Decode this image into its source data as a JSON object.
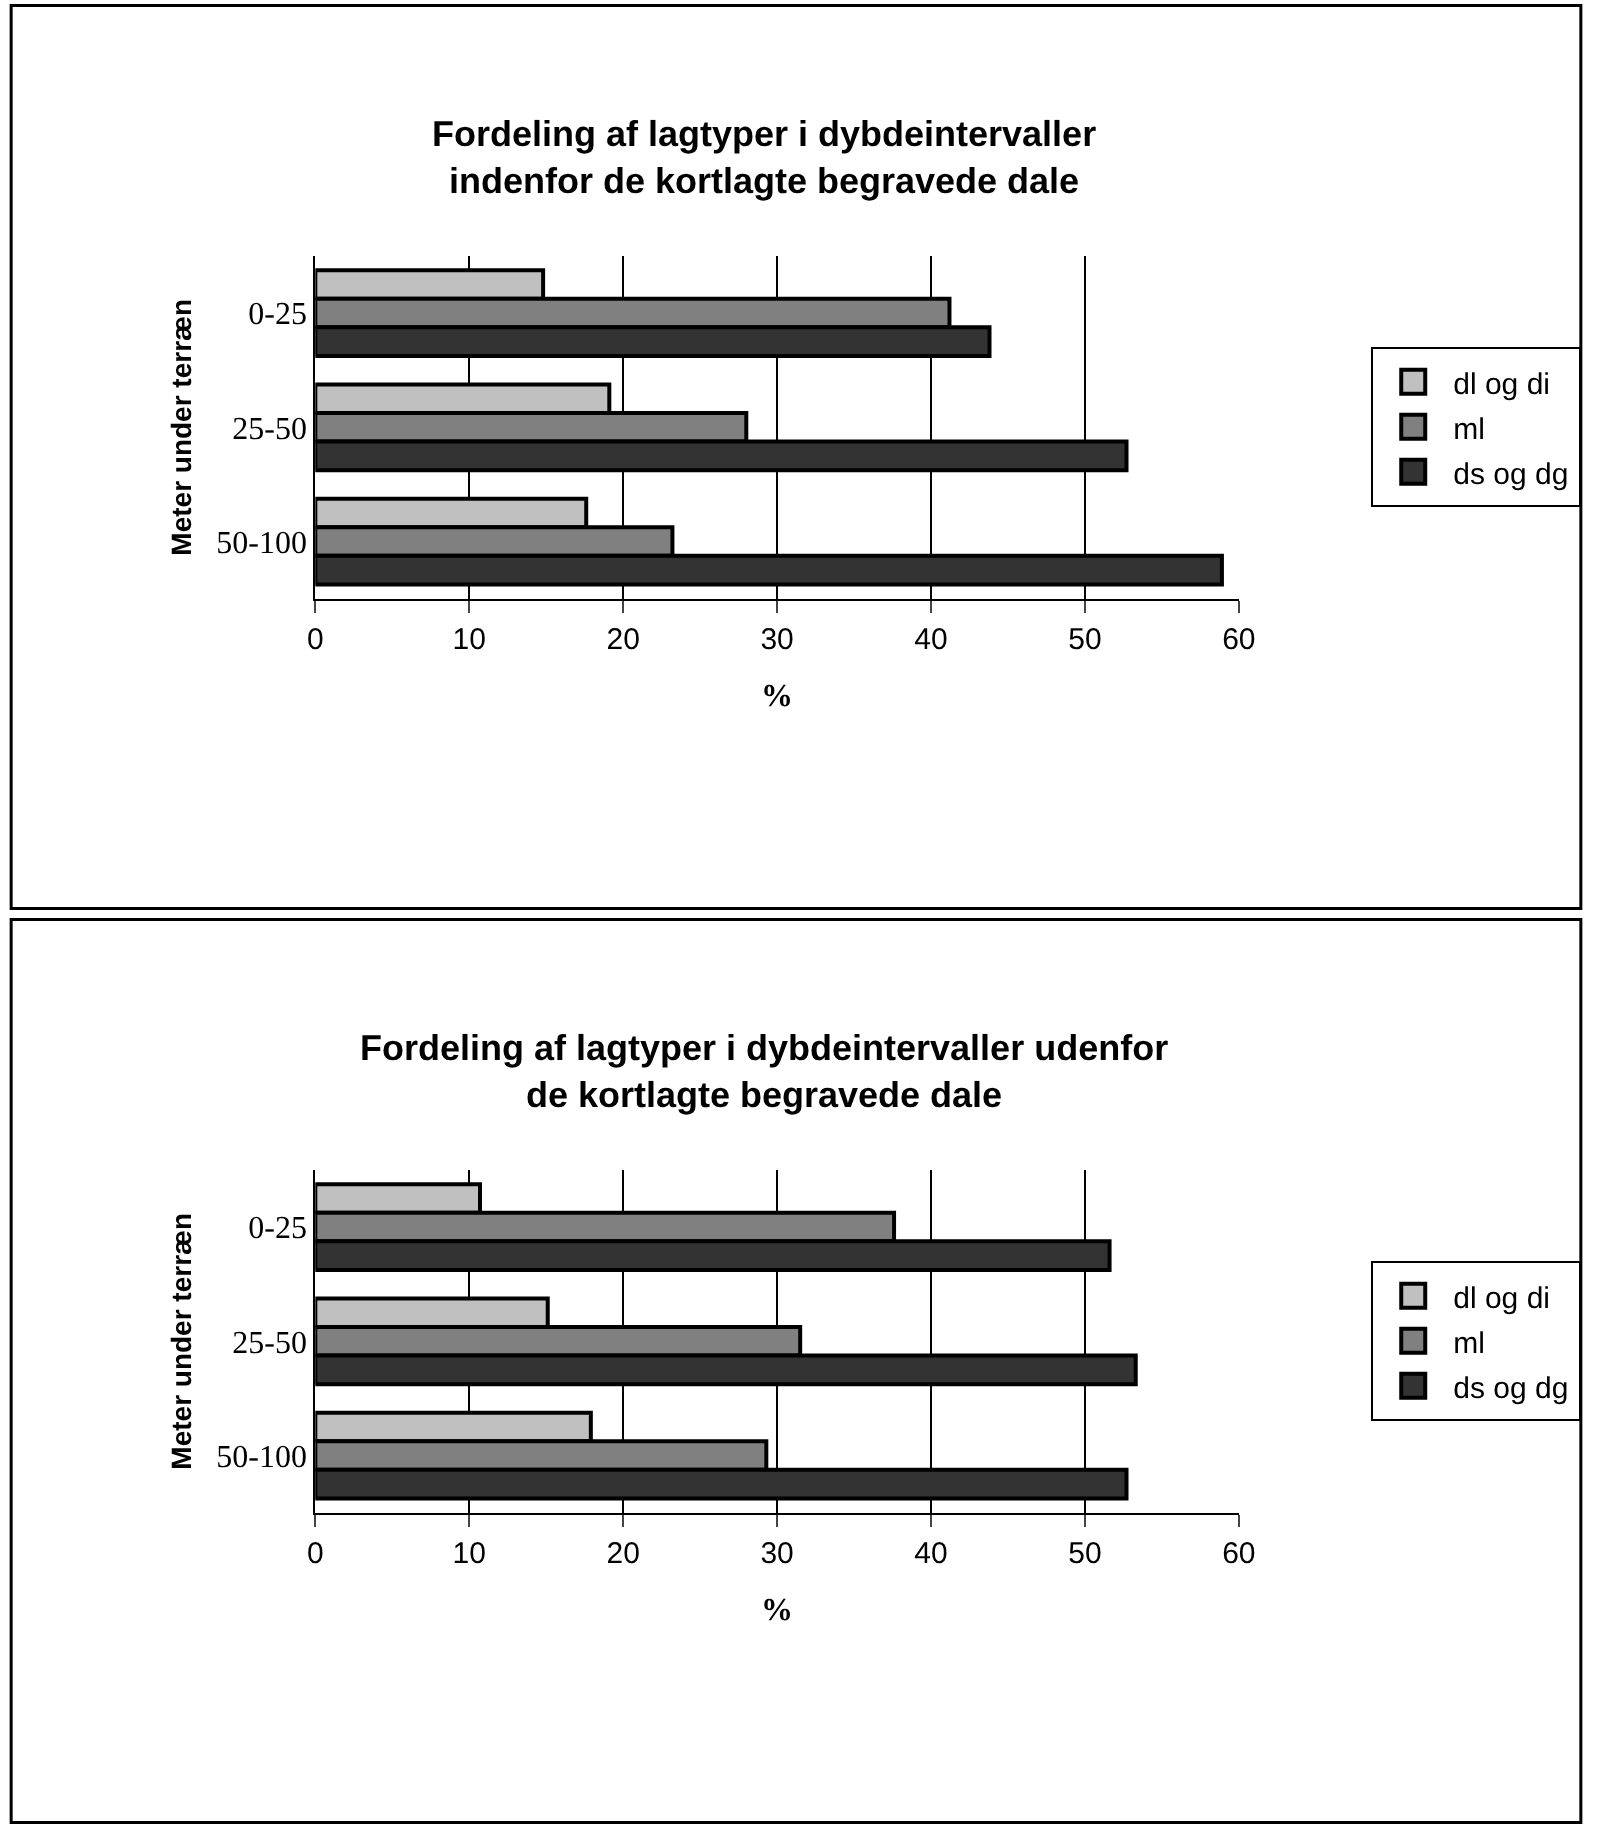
{
  "chart_data": [
    {
      "type": "bar",
      "orientation": "horizontal",
      "title": "Fordeling af lagtyper i dybdeintervaller indenfor de kortlagte begravede dale",
      "xlabel": "%",
      "ylabel": "Meter under terræn",
      "categories": [
        "0-25",
        "25-50",
        "50-100"
      ],
      "series": [
        {
          "name": "dl og di",
          "color": "#c0c0c0",
          "values": [
            14.8,
            19.1,
            17.6
          ]
        },
        {
          "name": "ml",
          "color": "#808080",
          "values": [
            41.2,
            28.0,
            23.2
          ]
        },
        {
          "name": "ds og dg",
          "color": "#333333",
          "values": [
            43.8,
            52.7,
            58.9
          ]
        }
      ],
      "xlim": [
        0,
        60
      ],
      "xticks": [
        0,
        10,
        20,
        30,
        40,
        50,
        60
      ],
      "grid": "x",
      "legend": "right"
    },
    {
      "type": "bar",
      "orientation": "horizontal",
      "title": "Fordeling af lagtyper i dybdeintervaller udenfor de kortlagte begravede dale",
      "xlabel": "%",
      "ylabel": "Meter under terræn",
      "categories": [
        "0-25",
        "25-50",
        "50-100"
      ],
      "series": [
        {
          "name": "dl og di",
          "color": "#c0c0c0",
          "values": [
            10.7,
            15.1,
            17.9
          ]
        },
        {
          "name": "ml",
          "color": "#808080",
          "values": [
            37.6,
            31.5,
            29.3
          ]
        },
        {
          "name": "ds og dg",
          "color": "#333333",
          "values": [
            51.6,
            53.3,
            52.7
          ]
        }
      ],
      "xlim": [
        0,
        60
      ],
      "xticks": [
        0,
        10,
        20,
        30,
        40,
        50,
        60
      ],
      "grid": "x",
      "legend": "right"
    }
  ]
}
